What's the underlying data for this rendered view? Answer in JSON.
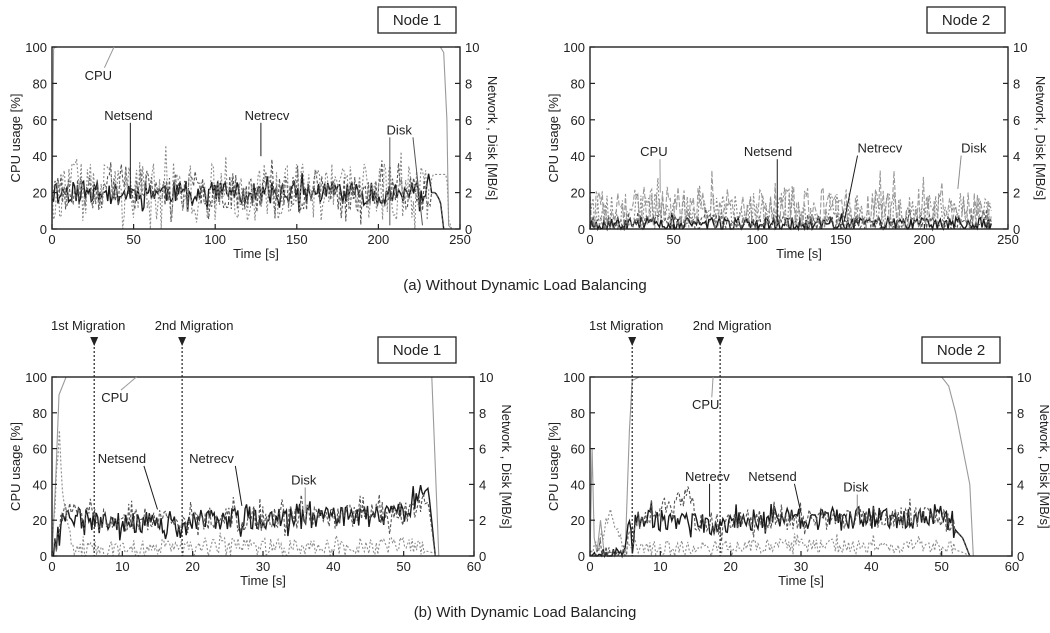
{
  "captions": {
    "a": "(a)  Without Dynamic Load Balancing",
    "b": "(b)  With Dynamic Load Balancing"
  },
  "colors": {
    "cpu": "#9a9a9a",
    "netsend": "#1a1a1a",
    "netrecv": "#555555",
    "disk": "#8c8c8c",
    "axis": "#222222"
  },
  "chart_data": [
    {
      "id": "a1",
      "type": "line",
      "node_label": "Node 1",
      "xlabel": "Time [s]",
      "ylabel_left": "CPU usage [%]",
      "ylabel_right": "Network , Disk [MB/s]",
      "xlim": [
        0,
        250
      ],
      "xticks": [
        0,
        50,
        100,
        150,
        200,
        250
      ],
      "ylim_left": [
        0,
        100
      ],
      "yticks_left": [
        0,
        20,
        40,
        60,
        80,
        100
      ],
      "ylim_right": [
        0,
        10
      ],
      "yticks_right": [
        0,
        2,
        4,
        6,
        8,
        10
      ],
      "grid": false,
      "series": [
        {
          "name": "CPU",
          "axis": "left",
          "color": "#9a9a9a",
          "dash": "",
          "x": [
            0,
            1,
            2,
            238,
            240,
            242,
            243,
            245
          ],
          "y": [
            0,
            99,
            100,
            100,
            97,
            60,
            2,
            0
          ]
        },
        {
          "name": "Netsend",
          "axis": "right",
          "color": "#1a1a1a",
          "dash": "",
          "x": [
            0,
            20,
            40,
            60,
            80,
            100,
            120,
            140,
            160,
            180,
            200,
            220,
            235,
            238,
            240
          ],
          "y": [
            2.0,
            2.1,
            1.9,
            2.1,
            2.0,
            2.1,
            1.9,
            2.0,
            2.0,
            2.1,
            1.9,
            2.0,
            2.0,
            1.5,
            0
          ],
          "noise": 0.6,
          "noise_until": 232,
          "seed": 11
        },
        {
          "name": "Netrecv",
          "axis": "right",
          "color": "#555555",
          "dash": "3,2",
          "x": [
            0,
            50,
            100,
            150,
            200,
            235,
            238,
            240
          ],
          "y": [
            2.0,
            2.0,
            2.1,
            2.0,
            2.0,
            2.0,
            1.5,
            0
          ],
          "noise": 1.0,
          "noise_until": 232,
          "seed": 23
        },
        {
          "name": "Disk",
          "axis": "right",
          "color": "#8c8c8c",
          "dash": "2,2",
          "x": [
            0,
            50,
            100,
            150,
            200,
            225,
            232,
            233,
            240,
            242,
            243,
            245
          ],
          "y": [
            2.0,
            2.1,
            2.0,
            2.0,
            2.1,
            2.0,
            2.2,
            3.0,
            3.0,
            3.0,
            0.5,
            0
          ],
          "noise": 1.6,
          "noise_until": 230,
          "seed": 37
        }
      ],
      "annotations": [
        {
          "text": "CPU",
          "x": 20,
          "y": 82,
          "axis": "left",
          "to": [
            [
              38,
              100
            ]
          ],
          "color": "#9a9a9a"
        },
        {
          "text": "Netsend",
          "x": 32,
          "y": 60,
          "axis": "left",
          "to": [
            [
              48,
              20
            ]
          ],
          "color": "#1a1a1a"
        },
        {
          "text": "Netrecv",
          "x": 118,
          "y": 60,
          "axis": "left",
          "to": [
            [
              128,
              40
            ]
          ],
          "color": "#1a1a1a"
        },
        {
          "text": "Disk",
          "x": 205,
          "y": 52,
          "axis": "left",
          "to": [
            [
              207,
              2
            ],
            [
              227,
              2
            ]
          ],
          "color": "#555555"
        }
      ],
      "migrations": []
    },
    {
      "id": "a2",
      "type": "line",
      "node_label": "Node 2",
      "xlabel": "Time [s]",
      "ylabel_left": "CPU usage [%]",
      "ylabel_right": "Network , Disk [MB/s]",
      "xlim": [
        0,
        250
      ],
      "xticks": [
        0,
        50,
        100,
        150,
        200,
        250
      ],
      "ylim_left": [
        0,
        100
      ],
      "yticks_left": [
        0,
        20,
        40,
        60,
        80,
        100
      ],
      "ylim_right": [
        0,
        10
      ],
      "yticks_right": [
        0,
        2,
        4,
        6,
        8,
        10
      ],
      "grid": false,
      "series": [
        {
          "name": "CPU",
          "axis": "left",
          "color": "#9a9a9a",
          "dash": "5,2",
          "x": [
            0,
            50,
            100,
            150,
            200,
            240
          ],
          "y": [
            10,
            12,
            10,
            11,
            10,
            8
          ],
          "noise": 12,
          "noise_until": 240,
          "seed": 41
        },
        {
          "name": "Netsend",
          "axis": "right",
          "color": "#1a1a1a",
          "dash": "",
          "x": [
            0,
            240
          ],
          "y": [
            0.3,
            0.3
          ],
          "noise": 0.35,
          "noise_until": 240,
          "seed": 53
        },
        {
          "name": "Netrecv",
          "axis": "right",
          "color": "#555555",
          "dash": "3,2",
          "x": [
            0,
            240
          ],
          "y": [
            0.4,
            0.4
          ],
          "noise": 0.4,
          "noise_until": 240,
          "seed": 67
        },
        {
          "name": "Disk",
          "axis": "right",
          "color": "#8c8c8c",
          "dash": "2,2",
          "x": [
            0,
            240
          ],
          "y": [
            1.0,
            1.0
          ],
          "noise": 1.0,
          "noise_until": 240,
          "seed": 79
        }
      ],
      "annotations": [
        {
          "text": "CPU",
          "x": 30,
          "y": 40,
          "axis": "left",
          "to": [
            [
              42,
              20
            ]
          ],
          "color": "#9a9a9a"
        },
        {
          "text": "Netsend",
          "x": 92,
          "y": 40,
          "axis": "left",
          "to": [
            [
              112,
              4
            ]
          ],
          "color": "#1a1a1a"
        },
        {
          "text": "Netrecv",
          "x": 160,
          "y": 42,
          "axis": "left",
          "to": [
            [
              152,
              4
            ]
          ],
          "color": "#1a1a1a"
        },
        {
          "text": "Disk",
          "x": 222,
          "y": 42,
          "axis": "left",
          "to": [
            [
              220,
              22
            ]
          ],
          "color": "#8c8c8c"
        }
      ],
      "migrations": []
    },
    {
      "id": "b1",
      "type": "line",
      "node_label": "Node 1",
      "xlabel": "Time [s]",
      "ylabel_left": "CPU usage [%]",
      "ylabel_right": "Network , Disk [MB/s]",
      "xlim": [
        0,
        60
      ],
      "xticks": [
        0,
        10,
        20,
        30,
        40,
        50,
        60
      ],
      "ylim_left": [
        0,
        100
      ],
      "yticks_left": [
        0,
        20,
        40,
        60,
        80,
        100
      ],
      "ylim_right": [
        0,
        10
      ],
      "yticks_right": [
        0,
        2,
        4,
        6,
        8,
        10
      ],
      "grid": false,
      "series": [
        {
          "name": "CPU",
          "axis": "left",
          "color": "#9a9a9a",
          "dash": "",
          "x": [
            0,
            0.5,
            1,
            2,
            54,
            55
          ],
          "y": [
            0,
            40,
            90,
            100,
            100,
            0
          ]
        },
        {
          "name": "Netsend",
          "axis": "right",
          "color": "#1a1a1a",
          "dash": "",
          "x": [
            0,
            1,
            2,
            6,
            10,
            15,
            18.5,
            20,
            25,
            30,
            35,
            40,
            45,
            50,
            53.5,
            54.5
          ],
          "y": [
            0,
            1.5,
            2.2,
            2.0,
            1.9,
            1.9,
            1.5,
            2.0,
            2.0,
            2.1,
            2.1,
            2.2,
            2.2,
            2.4,
            3.8,
            0
          ],
          "noise": 0.6,
          "noise_until": 53,
          "seed": 91
        },
        {
          "name": "Netrecv",
          "axis": "right",
          "color": "#555555",
          "dash": "3,2",
          "x": [
            0,
            1,
            2,
            6,
            10,
            15,
            18.5,
            20,
            30,
            40,
            50,
            53.5,
            54.5
          ],
          "y": [
            0,
            1.5,
            2.3,
            2.0,
            2.0,
            2.0,
            1.6,
            2.1,
            2.1,
            2.2,
            2.4,
            3.0,
            0
          ],
          "noise": 0.7,
          "noise_until": 53,
          "seed": 103
        },
        {
          "name": "Disk",
          "axis": "right",
          "color": "#8c8c8c",
          "dash": "2,2",
          "x": [
            0,
            1,
            1.5,
            2.5,
            4,
            10,
            20,
            30,
            40,
            50,
            54,
            55
          ],
          "y": [
            0,
            7,
            4,
            1.0,
            0.3,
            0.4,
            0.5,
            0.5,
            0.5,
            0.6,
            0.2,
            0
          ],
          "noise": 0.5,
          "noise_until": 53,
          "seed": 117
        }
      ],
      "annotations": [
        {
          "text": "CPU",
          "x": 7,
          "y": 86,
          "axis": "left",
          "to": [
            [
              12,
              100
            ]
          ],
          "color": "#9a9a9a"
        },
        {
          "text": "Netsend",
          "x": 6.5,
          "y": 52,
          "axis": "left",
          "to": [
            [
              15,
              26
            ]
          ],
          "color": "#1a1a1a"
        },
        {
          "text": "Netrecv",
          "x": 19.5,
          "y": 52,
          "axis": "left",
          "to": [
            [
              27,
              28
            ]
          ],
          "color": "#1a1a1a"
        },
        {
          "text": "Disk",
          "x": 34,
          "y": 40,
          "axis": "left",
          "to": [
            [
              36,
              24
            ]
          ],
          "color": "#8c8c8c"
        }
      ],
      "migrations": [
        {
          "label": "1st Migration",
          "x": 6
        },
        {
          "label": "2nd Migration",
          "x": 18.5
        }
      ]
    },
    {
      "id": "b2",
      "type": "line",
      "node_label": "Node 2",
      "xlabel": "Time [s]",
      "ylabel_left": "CPU usage [%]",
      "ylabel_right": "Network , Disk [MB/s]",
      "xlim": [
        0,
        60
      ],
      "xticks": [
        0,
        10,
        20,
        30,
        40,
        50,
        60
      ],
      "ylim_left": [
        0,
        100
      ],
      "yticks_left": [
        0,
        20,
        40,
        60,
        80,
        100
      ],
      "ylim_right": [
        0,
        10
      ],
      "yticks_right": [
        0,
        2,
        4,
        6,
        8,
        10
      ],
      "grid": false,
      "series": [
        {
          "name": "CPU",
          "axis": "left",
          "color": "#9a9a9a",
          "dash": "",
          "x": [
            0,
            0.3,
            0.6,
            1,
            1.5,
            2,
            5,
            5.6,
            6,
            7,
            50,
            51,
            52,
            53,
            54,
            54.5
          ],
          "y": [
            0,
            60,
            10,
            2,
            20,
            2,
            2,
            70,
            98,
            100,
            100,
            95,
            80,
            60,
            40,
            0
          ]
        },
        {
          "name": "Netsend",
          "axis": "right",
          "color": "#1a1a1a",
          "dash": "",
          "x": [
            0,
            5,
            5.6,
            6,
            7,
            10,
            15,
            18.5,
            20,
            25,
            30,
            35,
            40,
            45,
            50,
            53,
            54
          ],
          "y": [
            0,
            0,
            2.0,
            1.2,
            2.2,
            2.0,
            2.0,
            1.6,
            2.0,
            2.0,
            2.1,
            2.0,
            2.1,
            2.1,
            2.3,
            1.0,
            0
          ],
          "noise": 0.6,
          "noise_until": 52,
          "seed": 131
        },
        {
          "name": "Netrecv",
          "axis": "right",
          "color": "#555555",
          "dash": "3,2",
          "x": [
            0,
            5,
            6,
            7,
            14,
            15,
            18.5,
            20,
            30,
            40,
            50,
            53,
            54
          ],
          "y": [
            0,
            0,
            1.5,
            2.0,
            3.5,
            2.0,
            1.6,
            2.0,
            2.0,
            2.1,
            2.2,
            1.0,
            0
          ],
          "noise": 0.6,
          "noise_until": 52,
          "seed": 149
        },
        {
          "name": "Disk",
          "axis": "right",
          "color": "#8c8c8c",
          "dash": "2,2",
          "x": [
            0,
            1,
            3,
            5,
            8,
            15,
            20,
            30,
            40,
            50,
            53,
            54
          ],
          "y": [
            0,
            0.5,
            2.5,
            0.5,
            0.4,
            0.5,
            0.5,
            0.6,
            0.5,
            0.6,
            0.2,
            0
          ],
          "noise": 0.4,
          "noise_until": 52,
          "seed": 163
        }
      ],
      "annotations": [
        {
          "text": "CPU",
          "x": 14.5,
          "y": 82,
          "axis": "left",
          "to": [
            [
              17.5,
              100
            ]
          ],
          "color": "#9a9a9a"
        },
        {
          "text": "Netrecv",
          "x": 13.5,
          "y": 42,
          "axis": "left",
          "to": [
            [
              17,
              22
            ]
          ],
          "color": "#1a1a1a"
        },
        {
          "text": "Netsend",
          "x": 22.5,
          "y": 42,
          "axis": "left",
          "to": [
            [
              30,
              24
            ]
          ],
          "color": "#1a1a1a"
        },
        {
          "text": "Disk",
          "x": 36,
          "y": 36,
          "axis": "left",
          "to": [
            [
              38,
              22
            ]
          ],
          "color": "#8c8c8c"
        }
      ],
      "migrations": [
        {
          "label": "1st Migration",
          "x": 6
        },
        {
          "label": "2nd Migration",
          "x": 18.5
        }
      ]
    }
  ]
}
